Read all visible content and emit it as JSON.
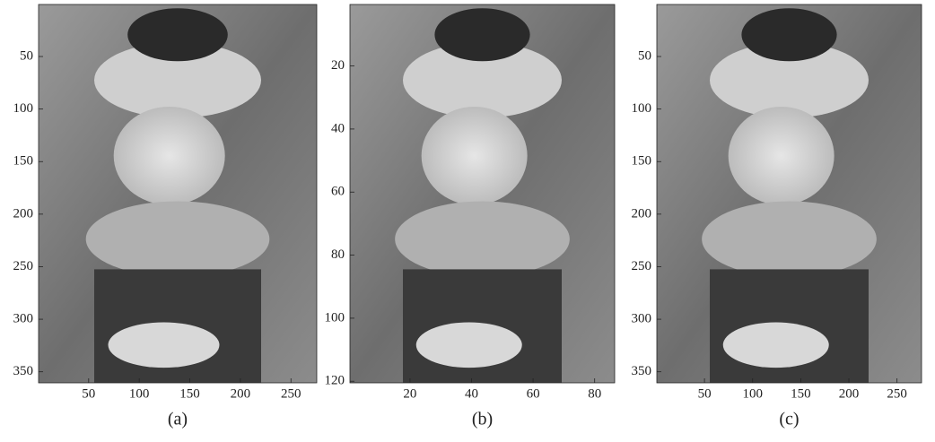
{
  "chart_data": [
    {
      "type": "image",
      "caption": "(a)",
      "xlim": [
        0.5,
        275.5
      ],
      "ylim": [
        0.5,
        360.5
      ],
      "xticks": [
        50,
        100,
        150,
        200,
        250
      ],
      "yticks": [
        50,
        100,
        150,
        200,
        250,
        300,
        350
      ]
    },
    {
      "type": "image",
      "caption": "(b)",
      "xlim": [
        0.5,
        86.5
      ],
      "ylim": [
        0.5,
        120.5
      ],
      "xticks": [
        20,
        40,
        60,
        80
      ],
      "yticks": [
        20,
        40,
        60,
        80,
        100,
        120
      ]
    },
    {
      "type": "image",
      "caption": "(c)",
      "xlim": [
        0.5,
        275.5
      ],
      "ylim": [
        0.5,
        360.5
      ],
      "xticks": [
        50,
        100,
        150,
        200,
        250
      ],
      "yticks": [
        50,
        100,
        150,
        200,
        250,
        300,
        350
      ]
    }
  ]
}
